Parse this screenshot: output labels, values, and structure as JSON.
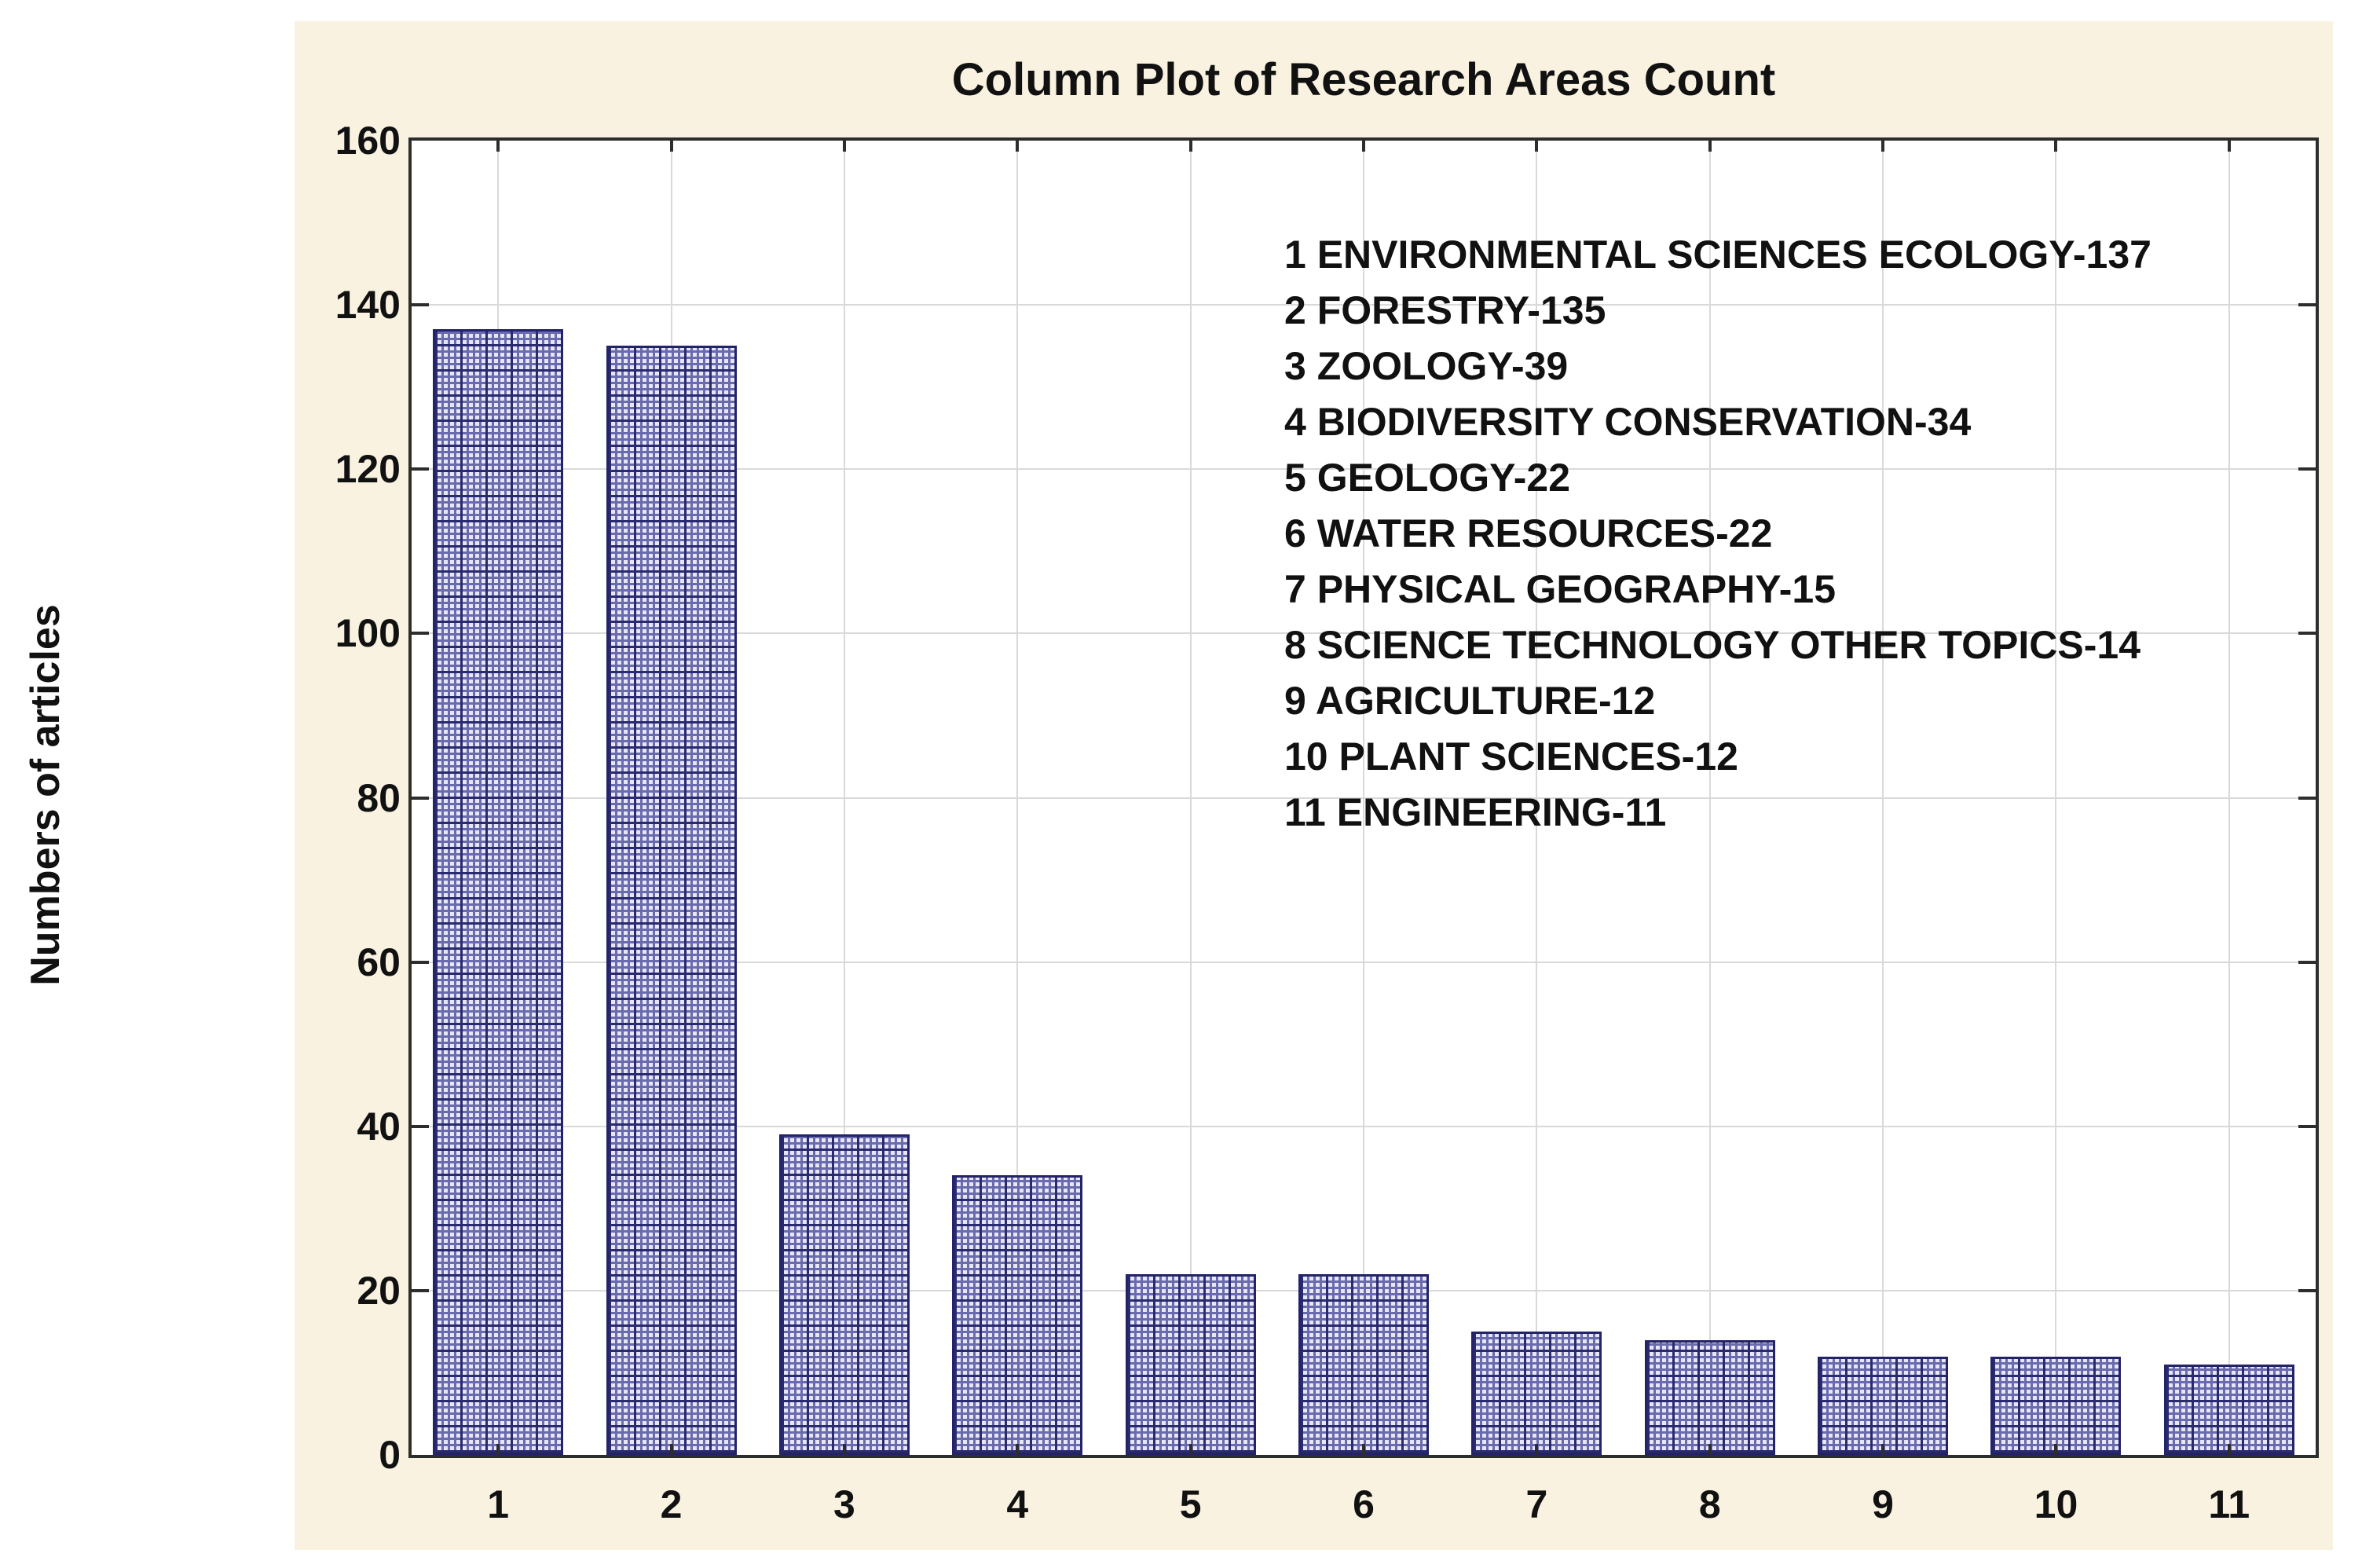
{
  "chart_data": {
    "type": "bar",
    "title": "Column Plot of Research Areas Count",
    "ylabel": "Numbers of articles",
    "xlabel": "",
    "categories": [
      "1",
      "2",
      "3",
      "4",
      "5",
      "6",
      "7",
      "8",
      "9",
      "10",
      "11"
    ],
    "values": [
      137,
      135,
      39,
      34,
      22,
      22,
      15,
      14,
      12,
      12,
      11
    ],
    "legend": [
      "1 ENVIRONMENTAL SCIENCES ECOLOGY-137",
      "2 FORESTRY-135",
      "3 ZOOLOGY-39",
      "4 BIODIVERSITY CONSERVATION-34",
      "5 GEOLOGY-22",
      "6 WATER RESOURCES-22",
      "7 PHYSICAL GEOGRAPHY-15",
      "8 SCIENCE TECHNOLOGY OTHER TOPICS-14",
      "9 AGRICULTURE-12",
      "10 PLANT SCIENCES-12",
      "11 ENGINEERING-11"
    ],
    "legend_position": "inside-top-right",
    "ylim": [
      0,
      160
    ],
    "yticks": [
      0,
      20,
      40,
      60,
      80,
      100,
      120,
      140,
      160
    ],
    "grid": true,
    "colors": {
      "panel_background": "#f9f2e1",
      "plot_background": "#ffffff",
      "gridline": "#d9d9d9",
      "axis": "#2d2d2d",
      "text": "#111111",
      "bar_fill": "#e6e6f5",
      "bar_hatch_mid": "#6a6aae",
      "bar_hatch_dark": "#2a2a70",
      "bar_border": "#23236a"
    }
  }
}
